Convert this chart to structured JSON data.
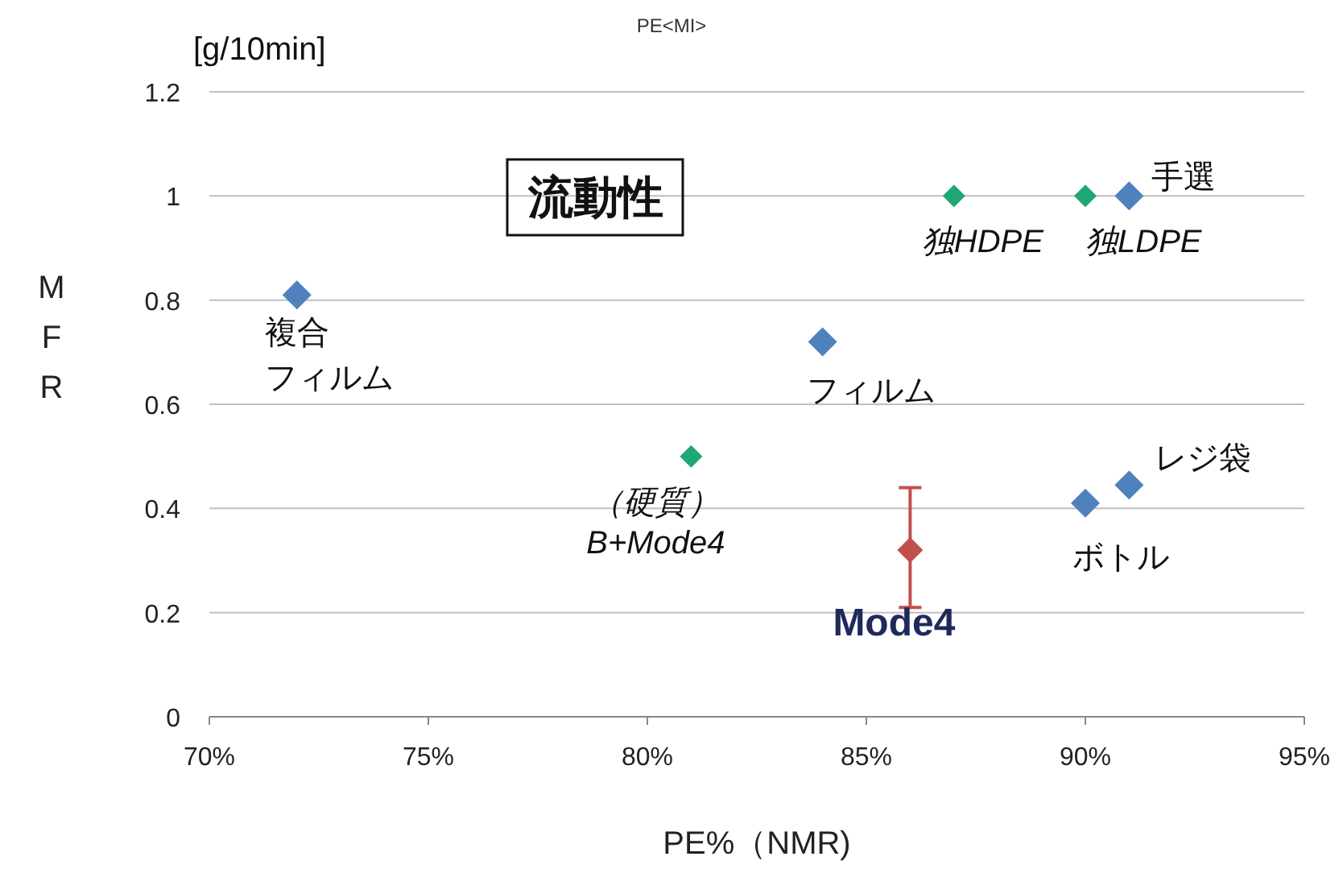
{
  "chart_data": {
    "type": "scatter",
    "title": "PE<MI>",
    "xlabel": "PE%（NMR)",
    "ylabel": "MFR",
    "xlim": [
      70,
      95
    ],
    "xticks": [
      {
        "value": 70,
        "label": "70%"
      },
      {
        "value": 75,
        "label": "75%"
      },
      {
        "value": 80,
        "label": "80%"
      },
      {
        "value": 85,
        "label": "85%"
      },
      {
        "value": 90,
        "label": "90%"
      },
      {
        "value": 95,
        "label": "95%"
      }
    ],
    "ylim": [
      0,
      1.2
    ],
    "yticks": [
      0,
      0.2,
      0.4,
      0.6,
      0.8,
      1,
      1.2
    ],
    "grid": "y",
    "marker": "diamond",
    "series": [
      {
        "color": "#4f81bd",
        "x": [
          72,
          84,
          91,
          90,
          91
        ],
        "values": [
          0.81,
          0.72,
          1.0,
          0.41,
          0.445
        ]
      },
      {
        "color": "#1fa774",
        "x": [
          81,
          87,
          90
        ],
        "values": [
          0.5,
          1.0,
          1.0
        ]
      },
      {
        "color": "#c0504d",
        "x": [
          86
        ],
        "values": [
          0.32
        ],
        "errors": [
          [
            0.21,
            0.44
          ]
        ]
      }
    ],
    "annotations": [
      "[g/10min]",
      "流動性",
      {
        "text": "複合",
        "x": 72,
        "y": 0.81
      },
      {
        "text": "フィルム",
        "x": 72,
        "y": 0.81
      },
      {
        "text": "フィルム",
        "x": 84,
        "y": 0.72
      },
      {
        "text": "手選",
        "x": 91,
        "y": 1
      },
      {
        "text": "独HDPE",
        "x": 87,
        "y": 1
      },
      {
        "text": "独LDPE",
        "x": 90,
        "y": 1
      },
      {
        "text": "レジ袋",
        "x": 91,
        "y": 0.445
      },
      {
        "text": "ボトル",
        "x": 90,
        "y": 0.41
      },
      {
        "text": "（硬質）\nB+Mode4",
        "x": 81,
        "y": 0.5
      },
      {
        "text": "Mode4",
        "x": 86,
        "y": 0.32
      }
    ]
  }
}
